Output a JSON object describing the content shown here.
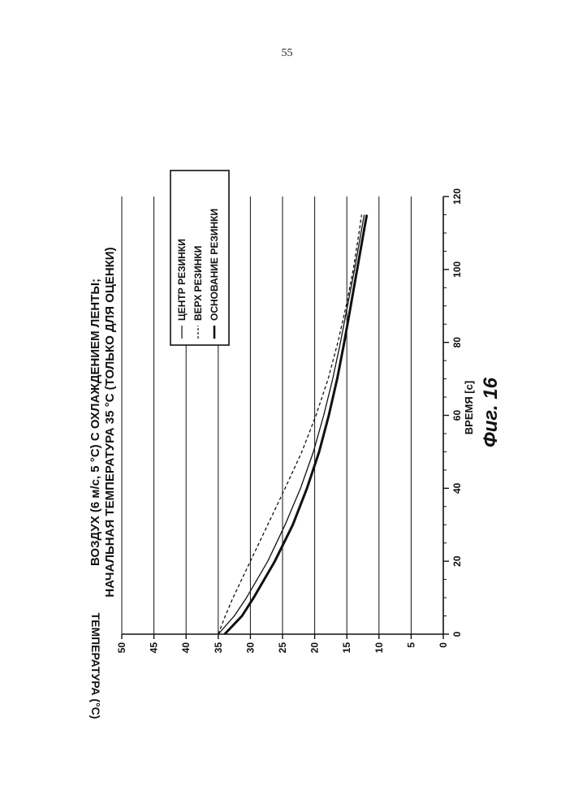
{
  "page_number": "55",
  "chart_data": {
    "type": "line",
    "title_line1": "ВОЗДУХ (6 м/с, 5 °С) С ОХЛАЖДЕНИЕМ ЛЕНТЫ;",
    "title_line2": "НАЧАЛЬНАЯ ТЕМПЕРАТУРА 35 °С (ТОЛЬКО ДЛЯ ОЦЕНКИ)",
    "xlabel": "ВРЕМЯ [с]",
    "ylabel": "ТЕМПЕРАТУРА (°С)",
    "figure_label": "Фиг. 16",
    "xlim": [
      0,
      120
    ],
    "ylim": [
      0,
      50
    ],
    "x_ticks": [
      "0",
      "20",
      "40",
      "60",
      "80",
      "100",
      "120"
    ],
    "y_ticks": [
      "0",
      "5",
      "10",
      "15",
      "20",
      "25",
      "30",
      "35",
      "40",
      "45",
      "50"
    ],
    "grid": true,
    "legend_placement": "top-right",
    "x": [
      0,
      5,
      10,
      20,
      30,
      40,
      50,
      60,
      70,
      80,
      90,
      100,
      110,
      115
    ],
    "series": [
      {
        "name": "ЦЕНТР РЕЗИНКИ",
        "style": "solid",
        "color": "#111111",
        "values": [
          35,
          32.5,
          30.6,
          27.3,
          24.6,
          22.2,
          20.2,
          18.6,
          17.2,
          16.0,
          14.9,
          13.8,
          12.8,
          12.3
        ]
      },
      {
        "name": "ВЕРХ РЕЗИНКИ",
        "style": "dashed",
        "color": "#111111",
        "values": [
          35,
          33.9,
          32.7,
          30.0,
          27.3,
          24.6,
          22.0,
          19.8,
          17.9,
          16.4,
          15.1,
          14.0,
          13.1,
          12.7
        ]
      },
      {
        "name": "ОСНОВАНИЕ РЕЗИНКИ",
        "style": "thick",
        "color": "#111111",
        "values": [
          34,
          31.3,
          29.5,
          26.2,
          23.4,
          21.2,
          19.3,
          17.8,
          16.5,
          15.4,
          14.4,
          13.4,
          12.4,
          11.9
        ]
      }
    ]
  }
}
